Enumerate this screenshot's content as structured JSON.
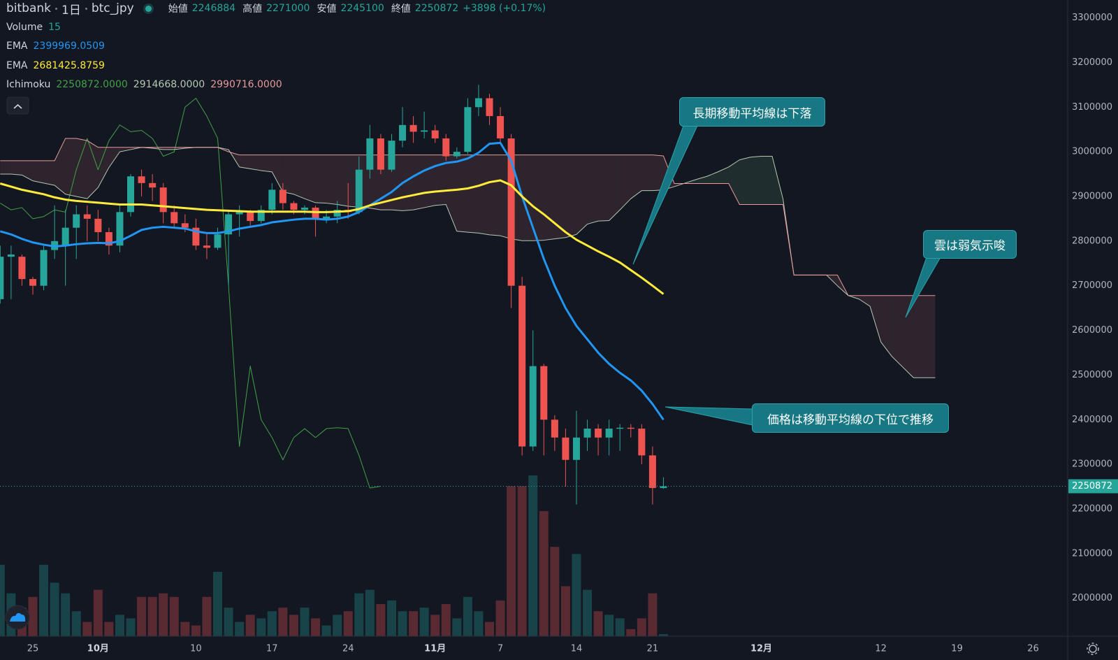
{
  "chart_data": {
    "type": "candlestick",
    "exchange": "bitbank",
    "interval": "1日",
    "symbol": "btc_jpy",
    "header": [
      {
        "label": "始値",
        "value": 2246884
      },
      {
        "label": "高値",
        "value": 2271000
      },
      {
        "label": "安値",
        "value": 2245100
      },
      {
        "label": "終値",
        "value": 2250872
      }
    ],
    "change": "+3898 (+0.17%)",
    "categories": [
      null,
      null,
      null,
      "25",
      null,
      null,
      null,
      null,
      null,
      "10月",
      null,
      null,
      null,
      null,
      null,
      null,
      null,
      null,
      "10",
      null,
      null,
      null,
      null,
      null,
      null,
      "17",
      null,
      null,
      null,
      null,
      null,
      null,
      "24",
      null,
      null,
      null,
      null,
      null,
      null,
      null,
      "11月",
      null,
      null,
      null,
      null,
      null,
      "7",
      null,
      null,
      null,
      null,
      null,
      null,
      "14",
      null,
      null,
      null,
      null,
      null,
      null,
      "21",
      null,
      null,
      null,
      null,
      null,
      null,
      null,
      null,
      null,
      "12月",
      null,
      null,
      null,
      null,
      null,
      null,
      null,
      null,
      null,
      null,
      "12",
      null,
      null,
      null,
      null,
      null,
      null,
      "19",
      null,
      null,
      null,
      null,
      null,
      null,
      "26",
      null,
      null
    ],
    "up_color": "#26a69a",
    "down_color": "#ef5350",
    "open": [
      2670000,
      2765000,
      2765000,
      2715000,
      2700000,
      2780000,
      2790000,
      2830000,
      2860000,
      2850000,
      2820000,
      2790000,
      2865000,
      2945000,
      2930000,
      2920000,
      2865000,
      2840000,
      2830000,
      2790000,
      2785000,
      2815000,
      2860000,
      2865000,
      2845000,
      2870000,
      2915000,
      2885000,
      2870000,
      2875000,
      2850000,
      2855000,
      2870000,
      2865000,
      2960000,
      3030000,
      2960000,
      3025000,
      3060000,
      3045000,
      3048000,
      3030000,
      2990000,
      3000000,
      3100000,
      3120000,
      3080000,
      3030000,
      2700000,
      2340000,
      2520000,
      2400000,
      2360000,
      2310000,
      2360000,
      2380000,
      2360000,
      2380000,
      2382000,
      2380000,
      2320000,
      2246884,
      null,
      null,
      null,
      null,
      null,
      null,
      null,
      null,
      null,
      null,
      null,
      null,
      null,
      null,
      null,
      null,
      null,
      null,
      null,
      null,
      null,
      null,
      null,
      null,
      null,
      null,
      null,
      null,
      null,
      null,
      null,
      null,
      null,
      null,
      null,
      null
    ],
    "high": [
      2790000,
      2790000,
      2770000,
      2720000,
      2790000,
      2880000,
      2870000,
      2880000,
      2880000,
      2870000,
      2830000,
      2880000,
      2950000,
      2960000,
      2950000,
      2930000,
      2880000,
      2860000,
      2850000,
      2820000,
      2830000,
      2870000,
      2880000,
      2870000,
      2880000,
      2930000,
      2930000,
      2890000,
      2880000,
      2880000,
      2870000,
      2890000,
      2930000,
      2990000,
      3060000,
      3040000,
      3040000,
      3100000,
      3080000,
      3090000,
      3060000,
      3040000,
      3010000,
      3120000,
      3150000,
      3130000,
      3100000,
      3040000,
      2720000,
      2600000,
      2525000,
      2410000,
      2380000,
      2420000,
      2400000,
      2390000,
      2400000,
      2390000,
      2390000,
      2390000,
      2340000,
      2271000,
      null,
      null,
      null,
      null,
      null,
      null,
      null,
      null,
      null,
      null,
      null,
      null,
      null,
      null,
      null,
      null,
      null,
      null,
      null,
      null,
      null,
      null,
      null,
      null,
      null,
      null,
      null,
      null,
      null,
      null,
      null,
      null,
      null,
      null,
      null,
      null
    ],
    "low": [
      2660000,
      2670000,
      2700000,
      2680000,
      2690000,
      2760000,
      2700000,
      2760000,
      2800000,
      2800000,
      2770000,
      2775000,
      2855000,
      2900000,
      2890000,
      2840000,
      2830000,
      2820000,
      2780000,
      2760000,
      2780000,
      2700000,
      2810000,
      2835000,
      2840000,
      2860000,
      2870000,
      2860000,
      2860000,
      2810000,
      2840000,
      2840000,
      2850000,
      2860000,
      2940000,
      2950000,
      2955000,
      3010000,
      3020000,
      3030000,
      3020000,
      2980000,
      2985000,
      2995000,
      3080000,
      3060000,
      3020000,
      2650000,
      2320000,
      2330000,
      2320000,
      2330000,
      2250000,
      2210000,
      2330000,
      2320000,
      2320000,
      2330000,
      2360000,
      2300000,
      2210000,
      2245100,
      null,
      null,
      null,
      null,
      null,
      null,
      null,
      null,
      null,
      null,
      null,
      null,
      null,
      null,
      null,
      null,
      null,
      null,
      null,
      null,
      null,
      null,
      null,
      null,
      null,
      null,
      null,
      null,
      null,
      null,
      null,
      null,
      null,
      null,
      null,
      null
    ],
    "close": [
      2765000,
      2770000,
      2715000,
      2700000,
      2780000,
      2800000,
      2830000,
      2860000,
      2850000,
      2820000,
      2790000,
      2865000,
      2945000,
      2930000,
      2920000,
      2865000,
      2840000,
      2830000,
      2790000,
      2785000,
      2815000,
      2860000,
      2865000,
      2845000,
      2870000,
      2915000,
      2885000,
      2870000,
      2875000,
      2850000,
      2855000,
      2870000,
      2865000,
      2960000,
      3030000,
      2960000,
      3025000,
      3060000,
      3045000,
      3048000,
      3030000,
      2990000,
      3000000,
      3100000,
      3120000,
      3080000,
      3030000,
      2700000,
      2340000,
      2520000,
      2400000,
      2360000,
      2310000,
      2360000,
      2380000,
      2360000,
      2380000,
      2382000,
      2380000,
      2320000,
      2247000,
      2250872,
      null,
      null,
      null,
      null,
      null,
      null,
      null,
      null,
      null,
      null,
      null,
      null,
      null,
      null,
      null,
      null,
      null,
      null,
      null,
      null,
      null,
      null,
      null,
      null,
      null,
      null,
      null,
      null,
      null,
      null,
      null,
      null,
      null,
      null,
      null,
      null
    ],
    "volume": {
      "name": "Volume",
      "color": "#26a69a",
      "values": [
        500,
        300,
        200,
        275,
        500,
        375,
        300,
        175,
        100,
        325,
        100,
        150,
        125,
        275,
        275,
        300,
        275,
        100,
        75,
        275,
        450,
        200,
        100,
        150,
        125,
        175,
        200,
        150,
        200,
        125,
        75,
        150,
        175,
        300,
        325,
        225,
        250,
        175,
        175,
        200,
        150,
        225,
        125,
        275,
        175,
        100,
        250,
        1050,
        1050,
        1125,
        875,
        625,
        350,
        575,
        325,
        175,
        150,
        125,
        50,
        125,
        300,
        15,
        null,
        null,
        null,
        null,
        null,
        null,
        null,
        null,
        null,
        null,
        null,
        null,
        null,
        null,
        null,
        null,
        null,
        null,
        null,
        null,
        null,
        null,
        null,
        null,
        null,
        null,
        null,
        null,
        null,
        null,
        null,
        null,
        null,
        null,
        null,
        null
      ]
    },
    "series": [
      {
        "name": "EMA",
        "color": "#2196f3",
        "values": [
          2822000,
          2815000,
          2805000,
          2797000,
          2792000,
          2788000,
          2790000,
          2793000,
          2795000,
          2796000,
          2795000,
          2800000,
          2812000,
          2825000,
          2830000,
          2832000,
          2830000,
          2828000,
          2822000,
          2818000,
          2818000,
          2822000,
          2828000,
          2832000,
          2836000,
          2842000,
          2845000,
          2848000,
          2850000,
          2850000,
          2848000,
          2850000,
          2855000,
          2865000,
          2880000,
          2895000,
          2910000,
          2930000,
          2945000,
          2958000,
          2968000,
          2975000,
          2978000,
          2985000,
          2998000,
          3018000,
          3020000,
          2980000,
          2900000,
          2830000,
          2760000,
          2700000,
          2650000,
          2610000,
          2580000,
          2550000,
          2525000,
          2505000,
          2488000,
          2465000,
          2435000,
          2399969.0509,
          null,
          null,
          null,
          null,
          null,
          null,
          null,
          null,
          null,
          null,
          null,
          null,
          null,
          null,
          null,
          null,
          null,
          null,
          null,
          null,
          null,
          null,
          null,
          null,
          null,
          null,
          null,
          null,
          null,
          null,
          null,
          null,
          null,
          null,
          null,
          null
        ]
      },
      {
        "name": "EMA",
        "color": "#ffeb3b",
        "values": [
          2929000,
          2922000,
          2915000,
          2910000,
          2905000,
          2898000,
          2893000,
          2890000,
          2888000,
          2886000,
          2884000,
          2882000,
          2882000,
          2882000,
          2880000,
          2878000,
          2876000,
          2874000,
          2872000,
          2870000,
          2869000,
          2868000,
          2867000,
          2866000,
          2866000,
          2866000,
          2866000,
          2866000,
          2866000,
          2865000,
          2865000,
          2866000,
          2867000,
          2872000,
          2880000,
          2886000,
          2892000,
          2898000,
          2903000,
          2908000,
          2911000,
          2913000,
          2915000,
          2918000,
          2924000,
          2932000,
          2936000,
          2925000,
          2900000,
          2878000,
          2860000,
          2840000,
          2820000,
          2803000,
          2790000,
          2777000,
          2765000,
          2752000,
          2735000,
          2718000,
          2700000,
          2681425.8759,
          null,
          null,
          null,
          null,
          null,
          null,
          null,
          null,
          null,
          null,
          null,
          null,
          null,
          null,
          null,
          null,
          null,
          null,
          null,
          null,
          null,
          null,
          null,
          null,
          null,
          null,
          null,
          null,
          null,
          null,
          null,
          null,
          null,
          null,
          null,
          null
        ]
      }
    ],
    "ichimoku": {
      "name": "Ichimoku",
      "series": [
        {
          "legend_label": "2250872.0000",
          "color": "#43a047",
          "values": [
            2885000,
            2870000,
            2875000,
            2850000,
            2855000,
            2870000,
            2865000,
            2960000,
            3030000,
            2960000,
            3025000,
            3060000,
            3045000,
            3048000,
            3030000,
            2990000,
            3000000,
            3100000,
            3120000,
            3080000,
            3030000,
            2700000,
            2340000,
            2520000,
            2400000,
            2360000,
            2310000,
            2360000,
            2380000,
            2360000,
            2380000,
            2382000,
            2380000,
            2320000,
            2247000,
            2250872,
            null,
            null,
            null,
            null,
            null,
            null,
            null,
            null,
            null,
            null,
            null,
            null,
            null,
            null,
            null,
            null,
            null,
            null,
            null,
            null,
            null,
            null,
            null,
            null,
            null,
            null,
            null,
            null,
            null,
            null,
            null,
            null,
            null,
            null,
            null,
            null,
            null,
            null,
            null,
            null,
            null,
            null,
            null,
            null,
            null,
            null,
            null,
            null,
            null,
            null,
            null,
            null,
            null,
            null,
            null,
            null,
            null,
            null,
            null,
            null,
            null,
            null
          ]
        },
        {
          "legend_label": "2914668.0000",
          "color": "#b5c9b2",
          "values": [
            2950000,
            2950000,
            2948000,
            2935000,
            2930000,
            2925000,
            2905000,
            2900000,
            2895000,
            2920000,
            2965000,
            3000000,
            3005000,
            3010000,
            3008000,
            3005000,
            3005000,
            3008000,
            3010000,
            3010000,
            3010000,
            3005000,
            2966000,
            2962000,
            2958000,
            2955000,
            2910000,
            2905000,
            2895000,
            2886000,
            2885000,
            2882000,
            2878000,
            2876000,
            2874000,
            2870000,
            2870000,
            2868000,
            2870000,
            2875000,
            2880000,
            2882000,
            2822000,
            2820000,
            2818000,
            2814000,
            2812000,
            2805000,
            2801000,
            2801000,
            2802000,
            2805000,
            2808000,
            2815000,
            2838000,
            2845000,
            2846000,
            2870000,
            2895000,
            2913000,
            2913000,
            2914668,
            2922000,
            2930000,
            2938000,
            2945000,
            2955000,
            2966000,
            2982000,
            2988000,
            2990000,
            2990000,
            2894000,
            2724000,
            2724000,
            2724000,
            2724000,
            2700000,
            2678000,
            2670000,
            2654000,
            2574000,
            2542000,
            2518000,
            2494000,
            2494000,
            2494000,
            null,
            null,
            null,
            null,
            null,
            null,
            null,
            null,
            null,
            null,
            null
          ]
        },
        {
          "legend_label": "2990716.0000",
          "color": "#e89a9a",
          "values": [
            2980000,
            2980000,
            2980000,
            2980000,
            2980000,
            2980000,
            3030000,
            3030000,
            3025000,
            3010000,
            3010000,
            3010000,
            3010000,
            3010000,
            3010000,
            3010000,
            3010000,
            3010000,
            3010000,
            3010000,
            3010000,
            3000000,
            2993000,
            2993000,
            2993000,
            2993000,
            2993000,
            2993000,
            2993000,
            2993000,
            2993000,
            2993000,
            2993000,
            2993000,
            2993000,
            2993000,
            2993000,
            2993000,
            2993000,
            2993000,
            2993000,
            2993000,
            2993000,
            2993000,
            2993000,
            2993000,
            2993000,
            2993000,
            2993000,
            2993000,
            2993000,
            2993000,
            2993000,
            2993000,
            2993000,
            2993000,
            2993000,
            2993000,
            2993000,
            2993000,
            2993000,
            2990716,
            2929000,
            2929000,
            2929000,
            2929000,
            2929000,
            2929000,
            2882000,
            2882000,
            2882000,
            2882000,
            2882000,
            2724000,
            2724000,
            2724000,
            2724000,
            2724000,
            2678000,
            2678000,
            2678000,
            2678000,
            2678000,
            2678000,
            2678000,
            2678000,
            2678000,
            null,
            null,
            null,
            null,
            null,
            null,
            null,
            null,
            null,
            null,
            null
          ]
        }
      ]
    },
    "ylim": [
      1915000,
      3340000
    ],
    "yticks": [
      2000000,
      2100000,
      2200000,
      2300000,
      2400000,
      2500000,
      2600000,
      2700000,
      2800000,
      2900000,
      3000000,
      3100000,
      3200000,
      3300000
    ],
    "annotations": [
      "長期移動平均線は下落",
      "雲は弱気示唆",
      "価格は移動平均線の下位で推移"
    ]
  }
}
